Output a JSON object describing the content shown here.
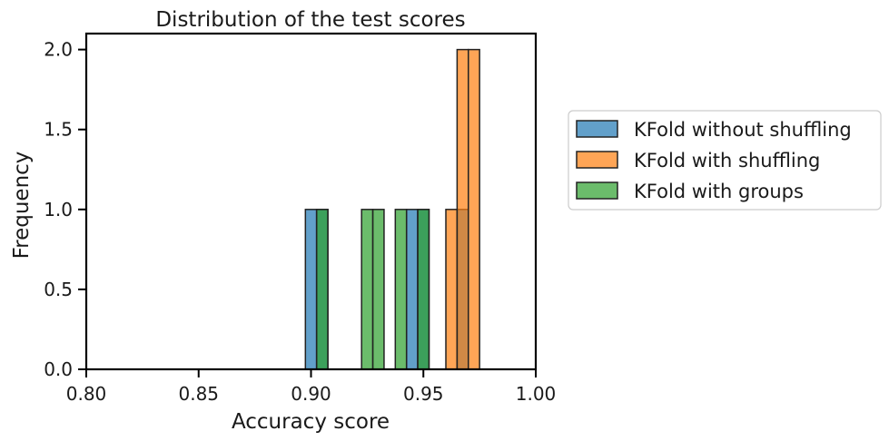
{
  "chart_data": {
    "type": "bar",
    "title": "Distribution of the test scores",
    "xlabel": "Accuracy score",
    "ylabel": "Frequency",
    "xlim": [
      0.8,
      1.0
    ],
    "ylim": [
      0,
      2.1
    ],
    "x_ticks": [
      "0.80",
      "0.85",
      "0.90",
      "0.95",
      "1.00"
    ],
    "y_ticks": [
      "0.0",
      "0.5",
      "1.0",
      "1.5",
      "2.0"
    ],
    "grid": false,
    "legend_position": "outside-right",
    "bin_width": 0.005,
    "series": [
      {
        "name": "KFold without shuffling",
        "color": "#1f77b4",
        "bins": [
          {
            "x0": 0.8975,
            "x1": 0.9025,
            "count": 1
          },
          {
            "x0": 0.9025,
            "x1": 0.9075,
            "count": 1
          },
          {
            "x0": 0.9425,
            "x1": 0.9475,
            "count": 1
          },
          {
            "x0": 0.9475,
            "x1": 0.9525,
            "count": 1
          },
          {
            "x0": 0.965,
            "x1": 0.97,
            "count": 1
          }
        ]
      },
      {
        "name": "KFold with shuffling",
        "color": "#ff7f0e",
        "bins": [
          {
            "x0": 0.96,
            "x1": 0.965,
            "count": 1
          },
          {
            "x0": 0.965,
            "x1": 0.97,
            "count": 2
          },
          {
            "x0": 0.97,
            "x1": 0.975,
            "count": 2
          }
        ]
      },
      {
        "name": "KFold with groups",
        "color": "#2ca02c",
        "bins": [
          {
            "x0": 0.9025,
            "x1": 0.9075,
            "count": 1
          },
          {
            "x0": 0.9225,
            "x1": 0.9275,
            "count": 1
          },
          {
            "x0": 0.9275,
            "x1": 0.9325,
            "count": 1
          },
          {
            "x0": 0.9375,
            "x1": 0.9425,
            "count": 1
          },
          {
            "x0": 0.9475,
            "x1": 0.9525,
            "count": 1
          }
        ]
      }
    ]
  }
}
